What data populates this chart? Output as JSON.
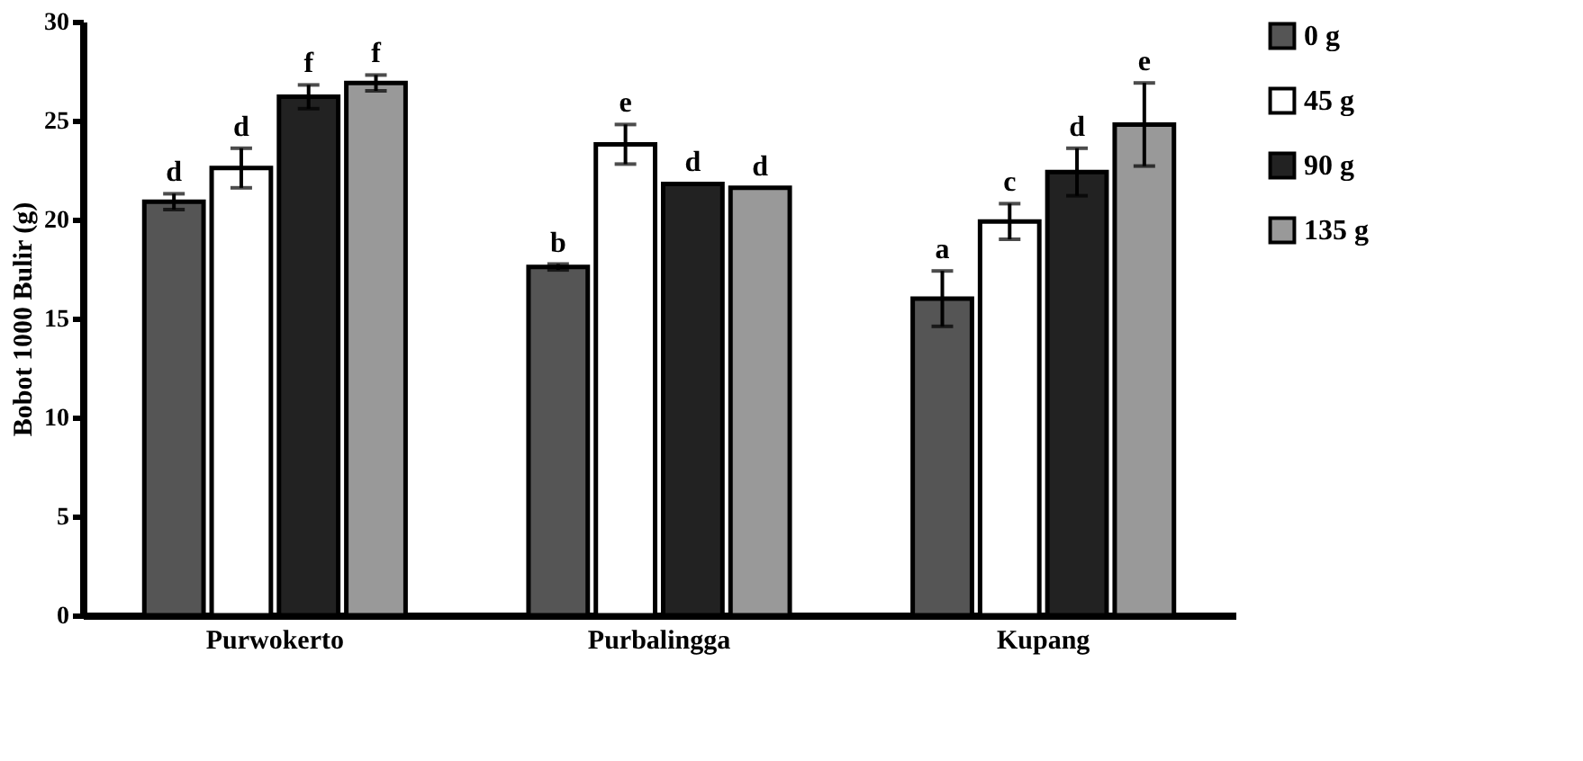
{
  "chart_data": {
    "type": "bar",
    "ylabel": "Bobot 1000 Bulir (g)",
    "categories": [
      "Purwokerto",
      "Purbalingga",
      "Kupang"
    ],
    "series": [
      {
        "name": "0 g",
        "color": "#555555",
        "values": [
          20.9,
          17.6,
          16.0
        ],
        "errors": [
          0.4,
          0.15,
          1.4
        ],
        "value_labels": [
          "d",
          "b",
          "a"
        ]
      },
      {
        "name": "45 g",
        "color": "#ffffff",
        "values": [
          22.6,
          23.8,
          19.9
        ],
        "errors": [
          1.0,
          1.0,
          0.9
        ],
        "value_labels": [
          "d",
          "e",
          "c"
        ]
      },
      {
        "name": "90 g",
        "color": "#222222",
        "values": [
          26.2,
          21.8,
          22.4
        ],
        "errors": [
          0.6,
          null,
          1.2
        ],
        "value_labels": [
          "f",
          "d",
          "d"
        ]
      },
      {
        "name": "135 g",
        "color": "#999999",
        "values": [
          26.9,
          21.6,
          24.8
        ],
        "errors": [
          0.4,
          null,
          2.1
        ],
        "value_labels": [
          "f",
          "d",
          "e"
        ]
      }
    ],
    "ylim": [
      0,
      30
    ],
    "yticks": [
      0,
      5,
      10,
      15,
      20,
      25,
      30
    ],
    "grid": false,
    "legend": "right"
  }
}
